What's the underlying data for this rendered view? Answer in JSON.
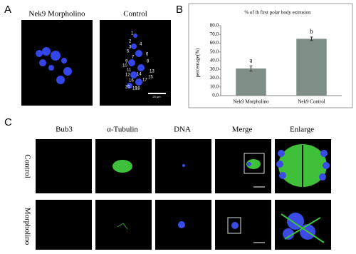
{
  "panel_labels": [
    "A",
    "B",
    "C"
  ],
  "panel_a": {
    "titles": [
      "Nek9 Morpholino",
      "Control"
    ],
    "control_numbers": [
      "1",
      "2",
      "3",
      "4",
      "5",
      "6",
      "7",
      "8",
      "9",
      "10",
      "11",
      "12",
      "13",
      "14",
      "15",
      "16",
      "17",
      "18",
      "19",
      "20"
    ],
    "scale_bar": "20 μm"
  },
  "chart_data": {
    "type": "bar",
    "title": "% of th first polar body  extrusion",
    "y_label": "percentage(%)",
    "categories": [
      "Nek9 Morpholino",
      "Nek9 Control"
    ],
    "values": [
      31,
      65
    ],
    "errors": [
      3,
      2
    ],
    "annotations": [
      "a",
      "b"
    ],
    "color": "#7f8e86",
    "ylim": [
      0,
      80
    ],
    "yticks": [
      {
        "value": 0,
        "label": "0.0"
      },
      {
        "value": 10,
        "label": "10.0"
      },
      {
        "value": 20,
        "label": "20.0"
      },
      {
        "value": 30,
        "label": "30.0"
      },
      {
        "value": 40,
        "label": "40.0"
      },
      {
        "value": 50,
        "label": "50.0"
      },
      {
        "value": 60,
        "label": "60.0"
      },
      {
        "value": 70,
        "label": "70.0"
      },
      {
        "value": 80,
        "label": "80.0"
      }
    ]
  },
  "panel_c": {
    "columns": [
      "Bub3",
      "α-Tubulin",
      "DNA",
      "Merge",
      "Enlarge"
    ],
    "rows": [
      "Control",
      "Morpholino"
    ]
  }
}
